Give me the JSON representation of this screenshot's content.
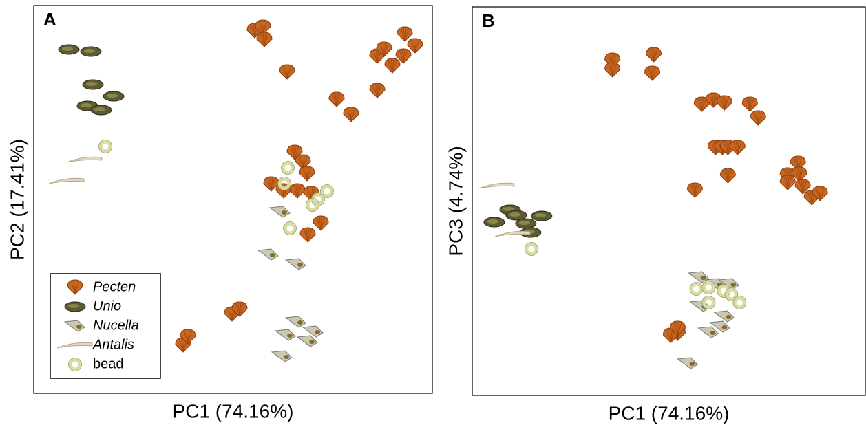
{
  "chart_data": [
    {
      "type": "scatter",
      "label": "A",
      "xlabel": "PC1 (74.16%)",
      "ylabel": "PC2 (17.41%)",
      "xlim": [
        0,
        579
      ],
      "ylim": [
        0,
        564
      ],
      "legend": "lower left",
      "series": [
        {
          "name": "Pecten",
          "color": "#c8651e",
          "x": [
            321,
            333,
            335,
            368,
            499,
            509,
            539,
            554,
            537,
            521,
            499,
            440,
            461,
            379,
            391,
            397,
            345,
            363,
            383,
            403,
            417,
            398,
            288,
            299,
            217,
            224
          ],
          "values": [
            527,
            532,
            514,
            467,
            490,
            500,
            522,
            505,
            490,
            476,
            440,
            427,
            405,
            350,
            336,
            319,
            304,
            294,
            294,
            290,
            247,
            230,
            115,
            122,
            70,
            82
          ]
        },
        {
          "name": "Unio",
          "color": "#5c5a2e",
          "x": [
            51,
            83,
            86,
            116,
            78,
            98
          ],
          "values": [
            500,
            497,
            449,
            432,
            418,
            412
          ]
        },
        {
          "name": "Nucella",
          "color": "#c9c9b2",
          "x": [
            358,
            341,
            381,
            381,
            366,
            406,
            398,
            361
          ],
          "values": [
            264,
            202,
            188,
            104,
            85,
            90,
            76,
            54
          ]
        },
        {
          "name": "Antalis",
          "color": "#e2d6be",
          "x": [
            74,
            48
          ],
          "values": [
            340,
            309
          ]
        },
        {
          "name": "bead",
          "color": "#d9dca0",
          "x": [
            104,
            369,
            364,
            426,
            413,
            405,
            372
          ],
          "values": [
            359,
            328,
            305,
            294,
            282,
            274,
            240
          ]
        }
      ]
    },
    {
      "type": "scatter",
      "label": "B",
      "xlabel": "PC1 (74.16%)",
      "ylabel": "PC3 (4.74%)",
      "xlim": [
        0,
        572
      ],
      "ylim": [
        0,
        565
      ],
      "series": [
        {
          "color": "#c8651e",
          "x": [
            204,
            204,
            264,
            262,
            334,
            351,
            367,
            404,
            416,
            354,
            364,
            372,
            386,
            372,
            324,
            474,
            459,
            476,
            459,
            481,
            494,
            506,
            299,
            289,
            299
          ],
          "values": [
            487,
            473,
            495,
            468,
            423,
            429,
            425,
            423,
            403,
            360,
            360,
            360,
            360,
            319,
            298,
            337,
            320,
            321,
            309,
            303,
            287,
            293,
            90,
            87,
            97
          ]
        },
        {
          "color": "#5c5a2e",
          "x": [
            55,
            64,
            32,
            78,
            101,
            85
          ],
          "values": [
            270,
            262,
            252,
            250,
            261,
            237
          ]
        },
        {
          "color": "#c9c9b2",
          "x": [
            330,
            354,
            374,
            332,
            367,
            344,
            361,
            314
          ],
          "values": [
            172,
            162,
            162,
            130,
            115,
            92,
            100,
            47
          ]
        },
        {
          "color": "#e2d6be",
          "x": [
            36,
            59
          ],
          "values": [
            305,
            235
          ]
        },
        {
          "color": "#d9dca0",
          "x": [
            86,
            326,
            344,
            366,
            377,
            389,
            344
          ],
          "values": [
            213,
            155,
            135,
            152,
            147,
            135,
            157
          ]
        }
      ]
    }
  ]
}
